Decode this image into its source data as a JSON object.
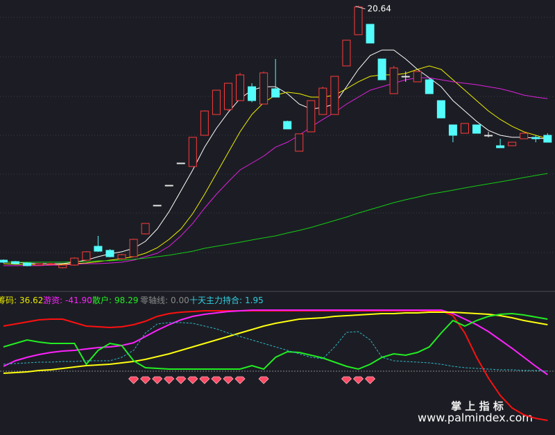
{
  "chart_data": [
    {
      "type": "candlestick",
      "open": [
        8.16,
        8.09,
        8.02,
        7.92,
        7.96,
        7.79,
        7.92,
        8.16,
        8.84,
        8.64,
        8.23,
        8.33,
        9.45,
        10.85,
        11.83,
        12.92,
        12.75,
        14.28,
        15.3,
        15.54,
        15.98,
        16.66,
        15.81,
        16.56,
        14.96,
        13.5,
        14.45,
        15.3,
        15.3,
        17.68,
        19.21,
        19.72,
        18.02,
        16.32,
        17.17,
        16.9,
        17.0,
        15.98,
        14.79,
        14.38,
        14.79,
        14.28,
        13.77,
        13.77,
        14.11,
        14.18,
        14.28
      ],
      "high": [
        8.2,
        8.12,
        8.06,
        8.02,
        8.02,
        7.96,
        8.3,
        8.6,
        9.35,
        8.7,
        8.47,
        9.21,
        9.96,
        10.85,
        11.83,
        12.92,
        14.18,
        15.5,
        16.49,
        16.83,
        17.34,
        16.83,
        17.41,
        18.02,
        15.0,
        14.35,
        15.98,
        16.66,
        17.17,
        18.94,
        20.64,
        19.72,
        18.02,
        17.68,
        17.41,
        17.41,
        17.1,
        15.98,
        14.79,
        14.86,
        14.79,
        14.45,
        14.11,
        13.94,
        14.45,
        14.28,
        14.38
      ],
      "low": [
        8.02,
        7.96,
        7.86,
        7.89,
        7.92,
        7.76,
        7.89,
        8.12,
        8.57,
        8.3,
        8.19,
        8.3,
        9.42,
        10.85,
        11.83,
        12.92,
        12.75,
        14.28,
        15.3,
        15.47,
        15.98,
        15.9,
        15.81,
        16.15,
        14.59,
        13.5,
        14.45,
        15.3,
        15.3,
        17.68,
        19.21,
        18.8,
        17.0,
        16.32,
        16.9,
        16.9,
        16.32,
        15.13,
        13.94,
        14.38,
        14.38,
        14.18,
        13.67,
        13.77,
        14.11,
        13.94,
        13.94
      ],
      "close": [
        8.06,
        7.99,
        7.89,
        7.99,
        7.99,
        7.92,
        8.26,
        8.57,
        8.6,
        8.33,
        8.43,
        9.18,
        9.96,
        10.85,
        11.83,
        12.92,
        14.18,
        15.47,
        16.49,
        16.83,
        17.24,
        15.98,
        17.34,
        16.15,
        14.59,
        14.35,
        15.98,
        16.59,
        17.17,
        18.94,
        20.57,
        18.8,
        17.0,
        17.58,
        17.17,
        17.41,
        16.32,
        15.13,
        14.28,
        14.86,
        14.38,
        14.28,
        13.67,
        13.94,
        14.38,
        14.11,
        13.94
      ],
      "up_color": "#ff3b3b",
      "down_color": "#54fcfc",
      "flat_color": "#e6e6e6",
      "series": [
        {
          "color": "#ffffff",
          "values": [
            8.06,
            8.06,
            8.02,
            7.99,
            7.99,
            7.99,
            8.06,
            8.16,
            8.33,
            8.47,
            8.57,
            8.74,
            9.08,
            9.69,
            10.54,
            11.56,
            12.58,
            13.7,
            14.62,
            15.4,
            16.08,
            16.49,
            16.66,
            16.66,
            16.32,
            15.81,
            15.57,
            15.64,
            15.81,
            16.66,
            17.51,
            18.19,
            18.46,
            18.46,
            18.02,
            17.51,
            17.1,
            16.66,
            15.98,
            15.47,
            14.96,
            14.52,
            14.28,
            14.18,
            14.18,
            14.14,
            14.11
          ]
        },
        {
          "color": "#f0f000",
          "values": [
            7.99,
            7.96,
            7.96,
            7.92,
            7.92,
            7.96,
            7.99,
            8.02,
            8.09,
            8.16,
            8.23,
            8.33,
            8.5,
            8.77,
            9.18,
            9.69,
            10.44,
            11.39,
            12.41,
            13.43,
            14.45,
            15.3,
            15.88,
            16.25,
            16.39,
            16.32,
            16.15,
            16.15,
            16.25,
            16.56,
            16.9,
            17.17,
            17.24,
            17.24,
            17.31,
            17.51,
            17.68,
            17.51,
            17.0,
            16.49,
            15.98,
            15.47,
            15.06,
            14.72,
            14.45,
            14.28,
            14.11
          ]
        },
        {
          "color": "#e020e0",
          "values": [
            7.89,
            7.89,
            7.89,
            7.89,
            7.92,
            7.92,
            7.96,
            7.99,
            7.99,
            8.02,
            8.06,
            8.16,
            8.33,
            8.5,
            8.84,
            9.35,
            9.96,
            10.71,
            11.39,
            12.0,
            12.58,
            12.92,
            13.26,
            13.7,
            13.94,
            14.28,
            14.69,
            15.06,
            15.4,
            15.81,
            16.15,
            16.49,
            16.66,
            16.83,
            17.0,
            17.1,
            17.1,
            17.0,
            16.9,
            16.83,
            16.76,
            16.66,
            16.56,
            16.42,
            16.25,
            16.15,
            16.08
          ]
        },
        {
          "color": "#14cc14",
          "values": [
            8.06,
            8.06,
            8.06,
            8.06,
            8.06,
            8.06,
            8.09,
            8.09,
            8.13,
            8.13,
            8.16,
            8.2,
            8.26,
            8.33,
            8.4,
            8.5,
            8.6,
            8.74,
            8.84,
            8.94,
            9.04,
            9.15,
            9.25,
            9.35,
            9.49,
            9.62,
            9.76,
            9.93,
            10.1,
            10.27,
            10.47,
            10.64,
            10.81,
            10.98,
            11.12,
            11.25,
            11.39,
            11.49,
            11.59,
            11.7,
            11.8,
            11.9,
            12.0,
            12.1,
            12.21,
            12.31,
            12.41
          ]
        }
      ],
      "ylim": [
        6.97,
        20.91
      ]
    },
    {
      "type": "line",
      "legend": [
        {
          "name": "筹码:",
          "value": 36.62,
          "color": "#e8e800"
        },
        {
          "name": "游资:",
          "value": {
            "value": -41.9,
            "label": "-41.90"
          },
          "color": "#ff22ff"
        },
        {
          "name": "散户:",
          "value": 98.29,
          "color": "#22ee22"
        },
        {
          "name": "零轴线:",
          "value": {
            "value": 0,
            "label": "0.00"
          },
          "color": "#8a8a8a"
        },
        {
          "name": "十天主力持合:",
          "value": 1.95,
          "color": "#30d0e0"
        }
      ],
      "series": [
        {
          "color": "#ff1010",
          "values": [
            32.5,
            34,
            35.5,
            37,
            37.5,
            37.5,
            35,
            32.5,
            32,
            31.5,
            32,
            33.5,
            36,
            39.5,
            41.5,
            42.5,
            43,
            43.5,
            43.5,
            43.5,
            43.5,
            43.5,
            43.5,
            43.5,
            43.5,
            43.5,
            43.5,
            43.5,
            43.5,
            43.5,
            43.5,
            43.5,
            43.5,
            43.5,
            43.5,
            43.5,
            43.5,
            43.5,
            40,
            27.5,
            10,
            -5,
            -17.5,
            -26.5,
            -31.5,
            -34,
            -35.5
          ]
        },
        {
          "color": "#ff22ff",
          "values": [
            3.5,
            7.5,
            10,
            12,
            13.5,
            14.5,
            15,
            16,
            17,
            17.5,
            18.5,
            20.5,
            25,
            29.5,
            33.5,
            37,
            39.5,
            41,
            42,
            43,
            43.5,
            44,
            44,
            44,
            44,
            44,
            44,
            44,
            44,
            44,
            44,
            44,
            44,
            44,
            44,
            44,
            44,
            44,
            41.5,
            37.5,
            33.5,
            28.5,
            22.5,
            16.5,
            10,
            3.5,
            -2.5
          ]
        },
        {
          "color": "#ffff10",
          "values": [
            -1.5,
            -1,
            -0.5,
            0.5,
            1,
            2,
            3,
            4,
            4.5,
            5,
            6,
            7,
            8.5,
            10.5,
            12.5,
            15,
            17.5,
            20,
            22.5,
            25,
            27.5,
            30,
            32.5,
            34.5,
            36,
            37.5,
            38,
            38.5,
            39.5,
            40,
            40.5,
            41,
            41.5,
            41.5,
            42,
            42,
            42.5,
            42.5,
            42.5,
            42,
            41.5,
            41,
            40,
            38.5,
            36.5,
            35,
            33.5
          ]
        },
        {
          "color": "#22ee22",
          "values": [
            17.5,
            20,
            22.5,
            21,
            20,
            20,
            20,
            5,
            15,
            20,
            18.5,
            7.5,
            2.5,
            2,
            1.5,
            1.5,
            1.5,
            1.5,
            1.5,
            1.5,
            1.5,
            4,
            1.5,
            10,
            14,
            13.5,
            11.5,
            9.5,
            6.5,
            3.5,
            1.5,
            5,
            10,
            12.5,
            11.5,
            13.5,
            17.5,
            27.5,
            36.5,
            32.5,
            36.5,
            39.5,
            41,
            41.5,
            40.5,
            39,
            37.5
          ]
        },
        {
          "color": "#2fb8c8",
          "dashed": true,
          "values": [
            5,
            5.5,
            6,
            6.5,
            6.5,
            7,
            7,
            7.5,
            7.5,
            7.5,
            10,
            15,
            27.5,
            34,
            35,
            35,
            34.5,
            32.5,
            30.5,
            27.5,
            25,
            22.5,
            20,
            17.5,
            15,
            12.5,
            10,
            9,
            17.5,
            28,
            28.5,
            22.5,
            10,
            7.5,
            7,
            6.5,
            6,
            5,
            3.5,
            2.5,
            2,
            1.5,
            1,
            1,
            0.5,
            0.5,
            0
          ]
        }
      ],
      "zero_color": "#8a8a8a",
      "signals": [
        11,
        12,
        13,
        14,
        15,
        16,
        17,
        18,
        19,
        20,
        22,
        29,
        30,
        31
      ],
      "signal_color": "#ff4a66",
      "ylim": [
        -46,
        55
      ]
    }
  ],
  "watermark": {
    "title": "掌 上 指 标",
    "url": "www.palmindex.com"
  }
}
